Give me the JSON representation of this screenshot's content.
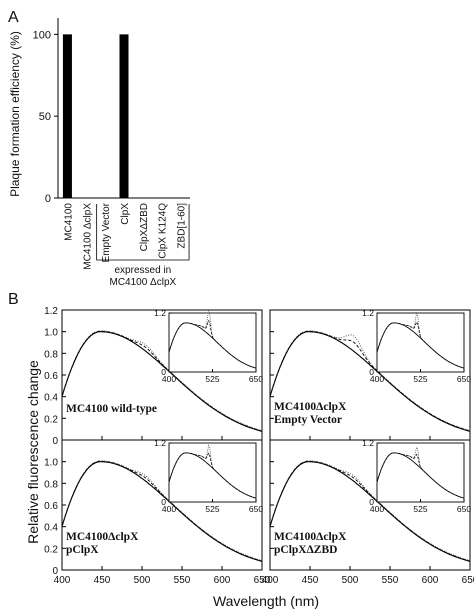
{
  "panel_a": {
    "label": "A",
    "chart_data": {
      "type": "bar",
      "ylabel": "Plaque formation efficiency (%)",
      "ylim": [
        0,
        110
      ],
      "yticks": [
        0,
        50,
        100
      ],
      "categories": [
        "MC4100",
        "MC4100 ΔclpX",
        "Empty Vector",
        "ClpX",
        "ClpXΔZBD",
        "ClpX K124Q",
        "ZBD[1-60]"
      ],
      "values": [
        100,
        0,
        0,
        100,
        0,
        0,
        0
      ],
      "bracket_label": [
        "expressed in",
        "MC4100 ΔclpX"
      ],
      "bar_color": "#000000"
    }
  },
  "panel_b": {
    "label": "B",
    "xlabel": "Wavelength (nm)",
    "ylabel": "Relative fluorescence change",
    "main_xticks": [
      400,
      450,
      500,
      550,
      600,
      650
    ],
    "main_yticks": [
      "0",
      "0.2",
      "0.4",
      "0.6",
      "0.8",
      "1.0",
      "1.2"
    ],
    "inset_xticks": [
      400,
      525,
      650
    ],
    "inset_yticks": [
      "0",
      "1.2"
    ],
    "subplots": [
      {
        "id": "wt",
        "label_lines": [
          "MC4100 wild-type"
        ],
        "hump": 0.87,
        "peak": 1.22
      },
      {
        "id": "ev",
        "label_lines": [
          "MC4100ΔclpX",
          "Empty Vector"
        ],
        "hump": 0.95,
        "peak": 1.17
      },
      {
        "id": "pc",
        "label_lines": [
          "MC4100ΔclpX",
          "pClpX"
        ],
        "hump": 0.86,
        "peak": 1.12
      },
      {
        "id": "pz",
        "label_lines": [
          "MC4100ΔclpX",
          "pClpXΔZBD"
        ],
        "hump": 0.86,
        "peak": 1.08
      }
    ]
  }
}
